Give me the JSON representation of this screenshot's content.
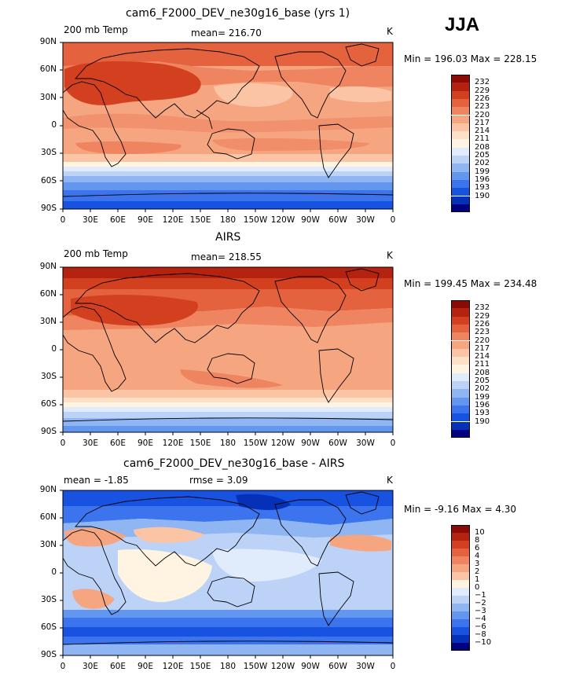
{
  "season": "JJA",
  "palette_temp": [
    "#000080",
    "#0531b8",
    "#1752e0",
    "#3b74ec",
    "#6397ef",
    "#8fb5f3",
    "#bcd3f7",
    "#e0ebfb",
    "#fff4e2",
    "#fde0c8",
    "#fbc4a5",
    "#f6a581",
    "#ef8461",
    "#e4623e",
    "#d2401f",
    "#b52210",
    "#8c0a05"
  ],
  "palette_diff": [
    "#000080",
    "#0531b8",
    "#1752e0",
    "#3b74ec",
    "#6397ef",
    "#8fb5f3",
    "#bcd3f7",
    "#e0ebfb",
    "#fff4e2",
    "#fbc4a5",
    "#f6a581",
    "#ef8461",
    "#e4623e",
    "#d2401f",
    "#b52210",
    "#8c0a05"
  ],
  "lon_labels": [
    "0",
    "30E",
    "60E",
    "90E",
    "120E",
    "150E",
    "180",
    "150W",
    "120W",
    "90W",
    "60W",
    "30W",
    "0"
  ],
  "lat_labels": [
    "90N",
    "60N",
    "30N",
    "0",
    "30S",
    "60S",
    "90S"
  ],
  "panels": [
    {
      "title": "cam6_F2000_DEV_ne30g16_base (yrs 1)",
      "left_label": "200 mb Temp",
      "center_label": "mean= 216.70",
      "units": "K",
      "stats": "Min = 196.03 Max = 228.15",
      "cb_labels": [
        "232",
        "229",
        "226",
        "223",
        "220",
        "217",
        "214",
        "211",
        "208",
        "205",
        "202",
        "199",
        "196",
        "193",
        "190"
      ]
    },
    {
      "title": "AIRS",
      "left_label": "200 mb Temp",
      "center_label": "mean= 218.55",
      "units": "K",
      "stats": "Min = 199.45 Max = 234.48",
      "cb_labels": [
        "232",
        "229",
        "226",
        "223",
        "220",
        "217",
        "214",
        "211",
        "208",
        "205",
        "202",
        "199",
        "196",
        "193",
        "190"
      ]
    },
    {
      "title": "cam6_F2000_DEV_ne30g16_base - AIRS",
      "left_label": "mean =   -1.85",
      "center_label": "rmse =    3.09",
      "units": "K",
      "stats": "Min =   -9.16 Max =    4.30",
      "cb_labels": [
        "10",
        "8",
        "6",
        "4",
        "3",
        "2",
        "1",
        "0",
        "−1",
        "−2",
        "−3",
        "−4",
        "−6",
        "−8",
        "−10"
      ]
    }
  ]
}
